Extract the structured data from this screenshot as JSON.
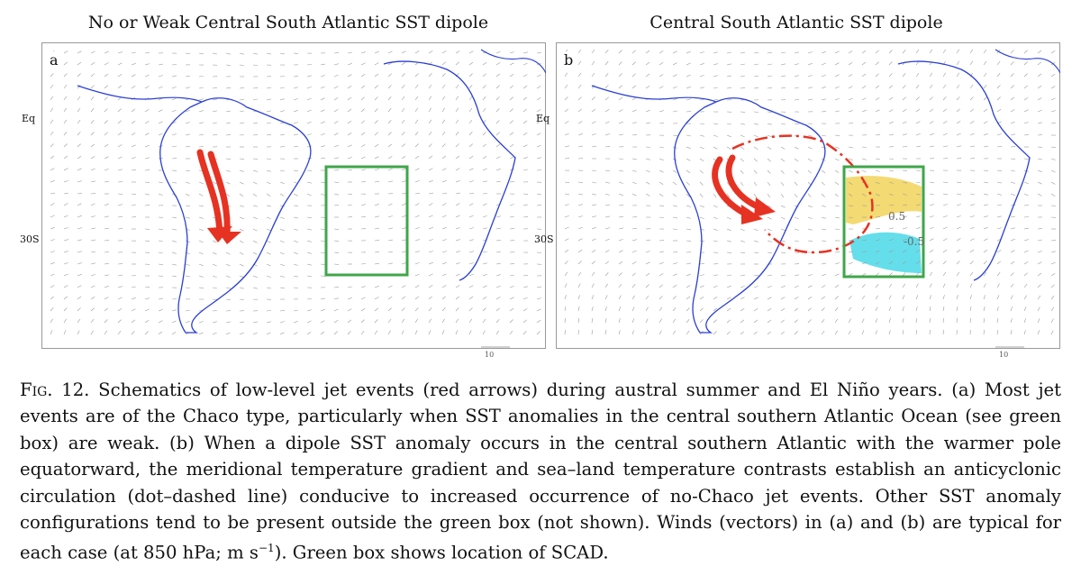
{
  "panels": [
    {
      "letter": "a",
      "title": "No or Weak Central South Atlantic SST dipole",
      "lat_labels": [
        "Eq",
        "30S"
      ],
      "scale": "10"
    },
    {
      "letter": "b",
      "title": "Central South Atlantic SST dipole",
      "lat_labels": [
        "Eq",
        "30S"
      ],
      "scale": "10",
      "contours": [
        "0.5",
        "-0.5"
      ]
    }
  ],
  "caption": {
    "fig_label": "Fig. 12.",
    "part1": "Schematics of low-level jet events (red arrows) during austral summer and El Niño years. (a) Most jet events are of the Chaco type, particularly when SST anomalies in the central southern Atlantic Ocean (see green box) are weak. (b) When a dipole SST anomaly occurs in the central southern Atlantic with the warmer pole equatorward, the meridional temperature gradient and sea–land temperature contrasts establish an anticyclonic circulation (dot–dashed line) conducive to increased occurrence of no-Chaco jet events. Other SST anomaly configurations tend to be present outside the green box (not shown). Winds (vectors) in (a) and (b) are typical for each case (at 850 hPa; m s",
    "unit_exp": "−1",
    "part2": "). Green box shows location of SCAD."
  },
  "colors": {
    "coast": "#2a3fd6",
    "jet": "#e63222",
    "box": "#3fa64a",
    "warm": "#f2d45a",
    "cold": "#3fd6e6"
  }
}
